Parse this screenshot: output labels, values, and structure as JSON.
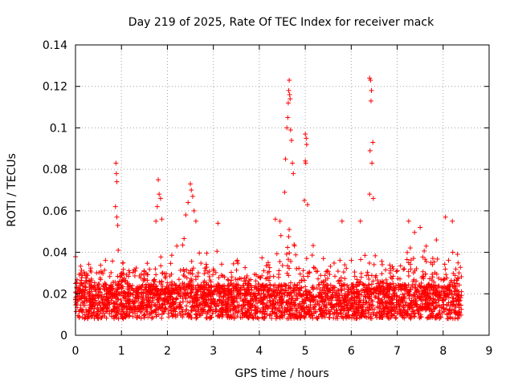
{
  "chart_data": {
    "type": "scatter",
    "title": "Day 219 of 2025, Rate Of TEC Index for receiver mack",
    "xlabel": "GPS time / hours",
    "ylabel": "ROTI / TECUs",
    "xlim": [
      0,
      9
    ],
    "ylim": [
      0,
      0.14
    ],
    "xticks": [
      0,
      1,
      2,
      3,
      4,
      5,
      6,
      7,
      8,
      9
    ],
    "yticks": [
      0,
      0.02,
      0.04,
      0.06,
      0.08,
      0.1,
      0.12,
      0.14
    ],
    "ytick_labels": [
      "0",
      "0.02",
      "0.04",
      "0.06",
      "0.08",
      "0.1",
      "0.12",
      "0.14"
    ],
    "grid": true,
    "marker": "+",
    "color": "#ff0000",
    "x_data_range": [
      0,
      8.4
    ],
    "baseline_band": {
      "low": 0.008,
      "high": 0.03
    },
    "series": [
      {
        "name": "ROTI",
        "points": [
          [
            0.88,
            0.083
          ],
          [
            0.89,
            0.078
          ],
          [
            0.9,
            0.074
          ],
          [
            0.87,
            0.062
          ],
          [
            0.9,
            0.057
          ],
          [
            0.92,
            0.053
          ],
          [
            0.93,
            0.041
          ],
          [
            1.8,
            0.075
          ],
          [
            1.82,
            0.068
          ],
          [
            1.85,
            0.066
          ],
          [
            1.78,
            0.062
          ],
          [
            1.88,
            0.056
          ],
          [
            1.75,
            0.055
          ],
          [
            2.5,
            0.073
          ],
          [
            2.52,
            0.07
          ],
          [
            2.55,
            0.067
          ],
          [
            2.45,
            0.064
          ],
          [
            2.58,
            0.06
          ],
          [
            2.4,
            0.058
          ],
          [
            2.62,
            0.055
          ],
          [
            4.55,
            0.069
          ],
          [
            4.57,
            0.085
          ],
          [
            4.6,
            0.1
          ],
          [
            4.62,
            0.105
          ],
          [
            4.63,
            0.112
          ],
          [
            4.64,
            0.118
          ],
          [
            4.65,
            0.123
          ],
          [
            4.66,
            0.116
          ],
          [
            4.67,
            0.114
          ],
          [
            4.68,
            0.099
          ],
          [
            4.7,
            0.094
          ],
          [
            4.72,
            0.083
          ],
          [
            4.74,
            0.078
          ],
          [
            5.0,
            0.097
          ],
          [
            5.02,
            0.095
          ],
          [
            5.03,
            0.092
          ],
          [
            5.0,
            0.084
          ],
          [
            5.01,
            0.083
          ],
          [
            4.98,
            0.065
          ],
          [
            5.05,
            0.063
          ],
          [
            6.4,
            0.124
          ],
          [
            6.42,
            0.123
          ],
          [
            6.44,
            0.118
          ],
          [
            6.43,
            0.113
          ],
          [
            6.47,
            0.093
          ],
          [
            6.41,
            0.089
          ],
          [
            6.45,
            0.083
          ],
          [
            6.4,
            0.068
          ],
          [
            6.48,
            0.066
          ],
          [
            7.25,
            0.055
          ],
          [
            7.5,
            0.052
          ],
          [
            8.05,
            0.057
          ],
          [
            8.2,
            0.055
          ],
          [
            5.8,
            0.055
          ],
          [
            6.2,
            0.055
          ],
          [
            3.1,
            0.054
          ],
          [
            4.35,
            0.056
          ],
          [
            4.45,
            0.055
          ]
        ]
      }
    ]
  }
}
